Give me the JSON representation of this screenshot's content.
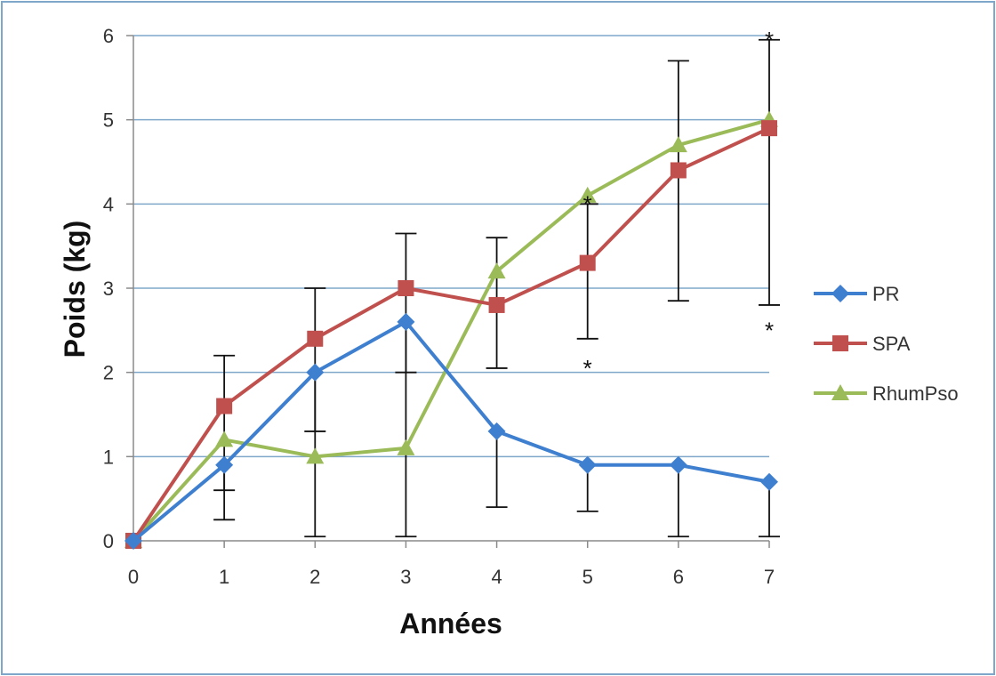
{
  "chart_data": {
    "type": "line",
    "title": "",
    "xlabel": "Années",
    "ylabel": "Poids (kg)",
    "x": [
      0,
      1,
      2,
      3,
      4,
      5,
      6,
      7
    ],
    "xlim": [
      0,
      7
    ],
    "ylim": [
      0,
      6
    ],
    "yticks": [
      0,
      1,
      2,
      3,
      4,
      5,
      6
    ],
    "grid": "horizontal",
    "legend_position": "right",
    "series": [
      {
        "name": "PR",
        "color": "#3f7fcf",
        "marker": "diamond",
        "values": [
          0,
          0.9,
          2.0,
          2.6,
          1.3,
          0.9,
          0.9,
          0.7
        ],
        "error_low": [
          null,
          0.6,
          1.3,
          2.0,
          0.4,
          0.35,
          0.05,
          0.05
        ],
        "error_high": [
          null,
          null,
          null,
          null,
          null,
          null,
          null,
          null
        ]
      },
      {
        "name": "SPA",
        "color": "#c0504d",
        "marker": "square",
        "values": [
          0,
          1.6,
          2.4,
          3.0,
          2.8,
          3.3,
          4.4,
          4.9
        ],
        "error_low": [
          null,
          0.25,
          0.05,
          0.05,
          2.05,
          2.4,
          2.85,
          2.8
        ],
        "error_high": [
          null,
          2.2,
          3.0,
          3.65,
          3.6,
          4.0,
          5.7,
          5.95
        ]
      },
      {
        "name": "RhumPso",
        "color": "#9bbb59",
        "marker": "triangle",
        "values": [
          0,
          1.2,
          1.0,
          1.1,
          3.2,
          4.1,
          4.7,
          5.0
        ],
        "error_low": [
          null,
          null,
          null,
          null,
          null,
          null,
          null,
          null
        ],
        "error_high": [
          null,
          null,
          null,
          null,
          null,
          null,
          null,
          null
        ]
      }
    ],
    "annotations": [
      {
        "text": "*",
        "x": 5,
        "y": 4.05
      },
      {
        "text": "*",
        "x": 5,
        "y": 2.1
      },
      {
        "text": "*",
        "x": 7,
        "y": 6.0
      },
      {
        "text": "*",
        "x": 7,
        "y": 2.55
      }
    ]
  }
}
